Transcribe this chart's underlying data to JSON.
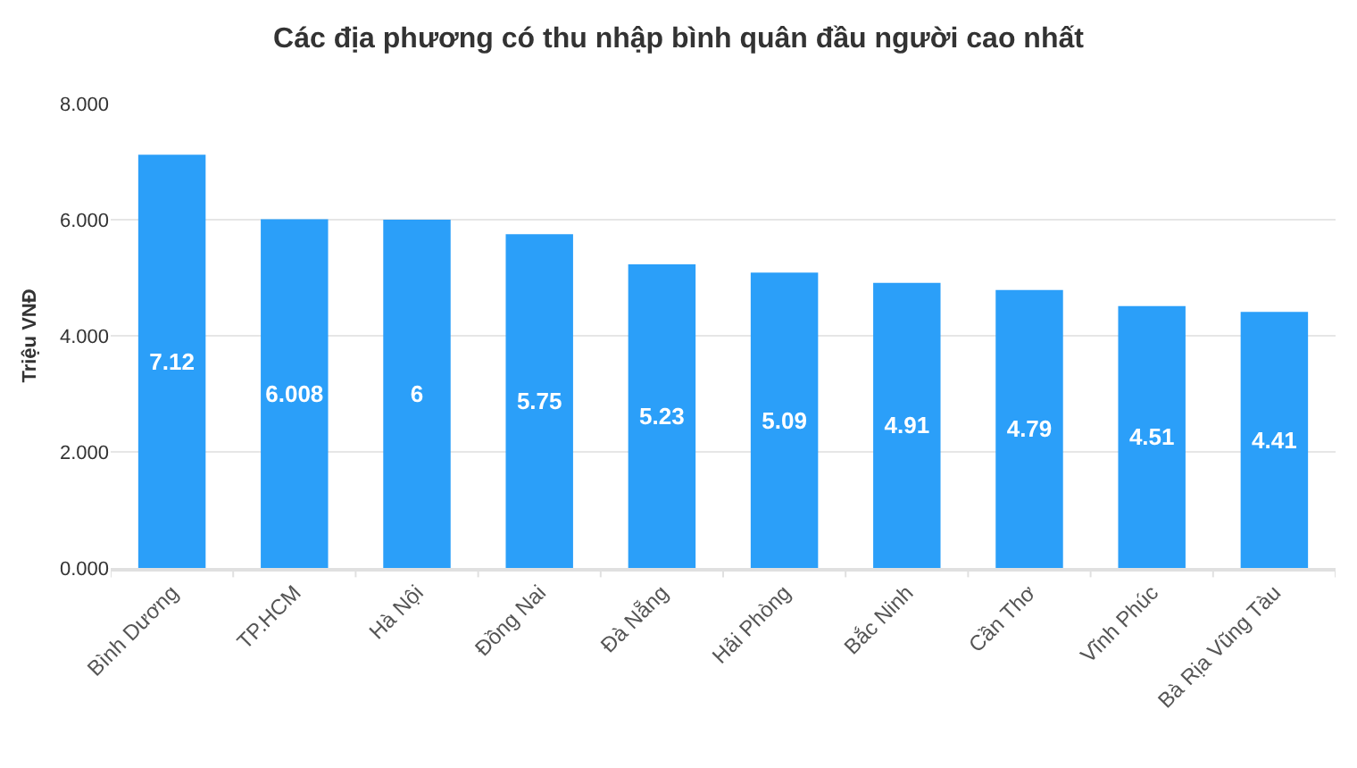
{
  "chart_data": {
    "type": "bar",
    "title": "Các địa phương có thu nhập bình quân đầu người cao nhất",
    "ylabel": "Triệu VNĐ",
    "categories": [
      "Bình Dương",
      "TP.HCM",
      "Hà Nội",
      "Đồng Nai",
      "Đà Nẵng",
      "Hải Phòng",
      "Bắc Ninh",
      "Cần Thơ",
      "Vĩnh Phúc",
      "Bà Rịa Vũng Tàu"
    ],
    "values": [
      7.12,
      6.008,
      6,
      5.75,
      5.23,
      5.09,
      4.91,
      4.79,
      4.51,
      4.41
    ],
    "color": "#2b9ff9",
    "ylim": [
      0,
      8
    ],
    "yticks": [
      {
        "value": 0,
        "label": "0.000"
      },
      {
        "value": 2,
        "label": "2.000"
      },
      {
        "value": 4,
        "label": "4.000"
      },
      {
        "value": 6,
        "label": "6.000"
      },
      {
        "value": 8,
        "label": "8.000"
      }
    ],
    "grid": "y",
    "data_labels": true
  }
}
